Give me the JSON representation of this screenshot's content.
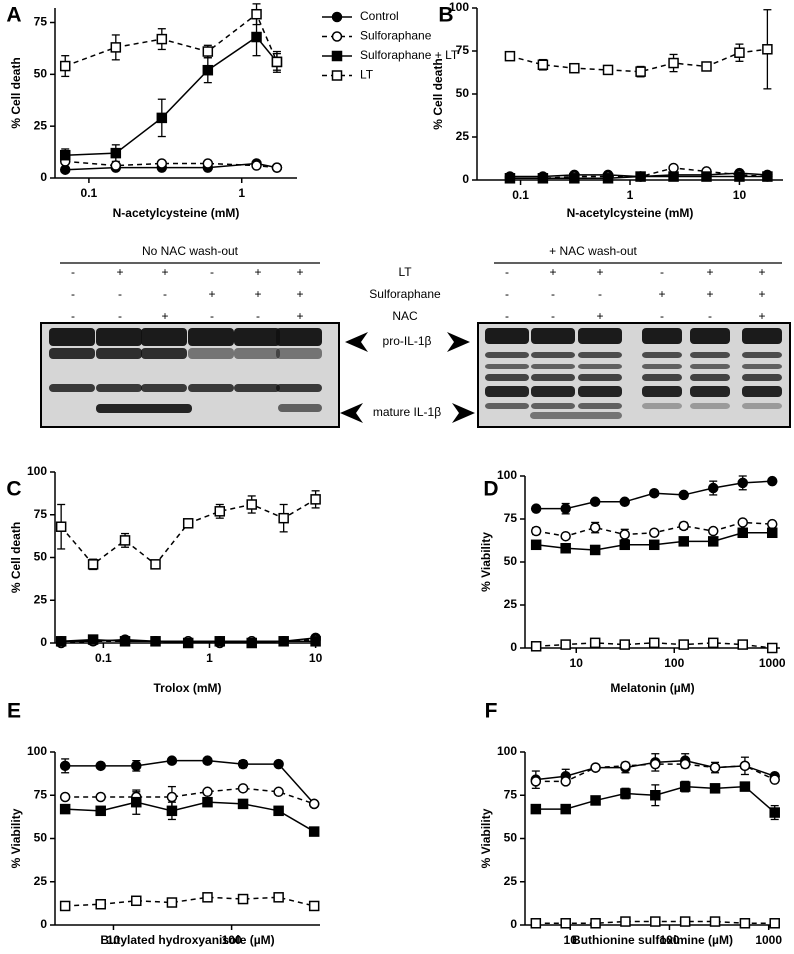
{
  "chart_data": [
    {
      "type": "line",
      "panel": "A",
      "xlabel": "N-acetylcysteine (mM)",
      "ylabel": "% Cell death",
      "xscale": "log",
      "color": "#000000",
      "legend": "right",
      "x": [
        0.07,
        0.15,
        0.3,
        0.6,
        1.25,
        1.7
      ],
      "xlim": [
        0.06,
        2.3
      ],
      "xticks": [
        0.1,
        1
      ],
      "ylim": [
        0,
        82
      ],
      "yticks": [
        0,
        25,
        50,
        75
      ],
      "series": [
        {
          "name": "Control",
          "marker": "circle",
          "filled": true,
          "dashed": false,
          "values": [
            4,
            5,
            5,
            5,
            7,
            5
          ]
        },
        {
          "name": "Sulforaphane",
          "marker": "circle",
          "filled": false,
          "dashed": true,
          "values": [
            8,
            6,
            7,
            7,
            6,
            5
          ]
        },
        {
          "name": "Sulforaphane + LT",
          "marker": "square",
          "filled": true,
          "dashed": false,
          "values": [
            11,
            12,
            29,
            52,
            68,
            56
          ],
          "errors": [
            3,
            4,
            9,
            6,
            9,
            5
          ]
        },
        {
          "name": "LT",
          "marker": "square",
          "filled": false,
          "dashed": true,
          "values": [
            54,
            63,
            67,
            61,
            79,
            56
          ],
          "errors": [
            5,
            6,
            5,
            3,
            5,
            4
          ]
        }
      ]
    },
    {
      "type": "line",
      "panel": "B",
      "xlabel": "N-acetylcysteine (mM)",
      "ylabel": "% Cell death",
      "xscale": "log",
      "color": "#000000",
      "x": [
        0.08,
        0.16,
        0.31,
        0.63,
        1.25,
        2.5,
        5,
        10,
        18
      ],
      "xlim": [
        0.04,
        25
      ],
      "xticks": [
        0.1,
        1,
        10
      ],
      "ylim": [
        0,
        100
      ],
      "yticks": [
        0,
        25,
        50,
        75,
        100
      ],
      "series": [
        {
          "marker": "circle",
          "filled": true,
          "dashed": false,
          "values": [
            2,
            2,
            3,
            3,
            2,
            3,
            3,
            4,
            3
          ]
        },
        {
          "marker": "circle",
          "filled": false,
          "dashed": true,
          "values": [
            1,
            1,
            2,
            2,
            2,
            7,
            5,
            3,
            2
          ]
        },
        {
          "marker": "square",
          "filled": true,
          "dashed": false,
          "values": [
            1,
            1,
            1,
            1,
            2,
            2,
            2,
            2,
            2
          ]
        },
        {
          "marker": "square",
          "filled": false,
          "dashed": true,
          "values": [
            72,
            67,
            65,
            64,
            63,
            68,
            66,
            74,
            76
          ],
          "errors": [
            2,
            3,
            2,
            2,
            3,
            5,
            2,
            5,
            23
          ]
        }
      ]
    },
    {
      "type": "line",
      "panel": "C",
      "xlabel": "Trolox (mM)",
      "ylabel": "% Cell death",
      "xscale": "log",
      "color": "#000000",
      "x": [
        0.04,
        0.08,
        0.16,
        0.31,
        0.63,
        1.25,
        2.5,
        5,
        10
      ],
      "xlim": [
        0.035,
        11
      ],
      "xticks": [
        0.1,
        1,
        10
      ],
      "ylim": [
        0,
        100
      ],
      "yticks": [
        0,
        25,
        50,
        75,
        100
      ],
      "series": [
        {
          "marker": "circle",
          "filled": true,
          "dashed": false,
          "values": [
            1,
            1,
            2,
            1,
            1,
            1,
            1,
            1,
            3
          ]
        },
        {
          "marker": "circle",
          "filled": false,
          "dashed": true,
          "values": [
            0,
            1,
            1,
            1,
            1,
            0,
            1,
            1,
            2
          ]
        },
        {
          "marker": "square",
          "filled": true,
          "dashed": false,
          "values": [
            1,
            2,
            1,
            1,
            0,
            1,
            0,
            1,
            1
          ]
        },
        {
          "marker": "square",
          "filled": false,
          "dashed": true,
          "values": [
            68,
            46,
            60,
            46,
            70,
            77,
            81,
            73,
            84
          ],
          "errors": [
            13,
            3,
            4,
            1,
            2,
            4,
            5,
            8,
            5
          ]
        }
      ]
    },
    {
      "type": "line",
      "panel": "D",
      "xlabel": "Melatonin (µM)",
      "ylabel": "% Viability",
      "xscale": "log",
      "color": "#000000",
      "x": [
        3.9,
        7.8,
        15.6,
        31.25,
        62.5,
        125,
        250,
        500,
        1000
      ],
      "xlim": [
        3,
        1200
      ],
      "xticks": [
        10,
        100,
        1000
      ],
      "ylim": [
        0,
        100
      ],
      "yticks": [
        0,
        25,
        50,
        75,
        100
      ],
      "series": [
        {
          "marker": "circle",
          "filled": true,
          "dashed": false,
          "values": [
            81,
            81,
            85,
            85,
            90,
            89,
            93,
            96,
            97
          ],
          "errors": [
            1,
            3,
            1,
            1,
            1,
            1,
            4,
            4,
            1
          ]
        },
        {
          "marker": "circle",
          "filled": false,
          "dashed": true,
          "values": [
            68,
            65,
            70,
            66,
            67,
            71,
            68,
            73,
            72
          ],
          "errors": [
            2,
            1,
            3,
            3,
            1,
            2,
            1,
            1,
            1
          ]
        },
        {
          "marker": "square",
          "filled": true,
          "dashed": false,
          "values": [
            60,
            58,
            57,
            60,
            60,
            62,
            62,
            67,
            67
          ]
        },
        {
          "marker": "square",
          "filled": false,
          "dashed": true,
          "values": [
            1,
            2,
            3,
            2,
            3,
            2,
            3,
            2,
            0
          ]
        }
      ]
    },
    {
      "type": "line",
      "panel": "E",
      "xlabel": "Butylated hydroxyanisole (µM)",
      "ylabel": "% Viability",
      "xscale": "log",
      "color": "#000000",
      "x": [
        3.9,
        7.8,
        15.6,
        31.25,
        62.5,
        125,
        250,
        500
      ],
      "xlim": [
        3.2,
        560
      ],
      "xticks": [
        10,
        100
      ],
      "ylim": [
        0,
        100
      ],
      "yticks": [
        0,
        25,
        50,
        75,
        100
      ],
      "series": [
        {
          "marker": "circle",
          "filled": true,
          "dashed": false,
          "values": [
            92,
            92,
            92,
            95,
            95,
            93,
            93,
            70
          ],
          "errors": [
            4,
            1,
            3,
            1,
            1,
            2,
            1,
            1
          ]
        },
        {
          "marker": "circle",
          "filled": false,
          "dashed": true,
          "values": [
            74,
            74,
            74,
            74,
            77,
            79,
            77,
            70
          ],
          "errors": [
            1,
            1,
            3,
            6,
            1,
            1,
            1,
            1
          ]
        },
        {
          "marker": "square",
          "filled": true,
          "dashed": false,
          "values": [
            67,
            66,
            71,
            66,
            71,
            70,
            66,
            54
          ],
          "errors": [
            2,
            1,
            7,
            5,
            1,
            1,
            1,
            1
          ]
        },
        {
          "marker": "square",
          "filled": false,
          "dashed": true,
          "values": [
            11,
            12,
            14,
            13,
            16,
            15,
            16,
            11
          ]
        }
      ]
    },
    {
      "type": "line",
      "panel": "F",
      "xlabel": "Buthionine sulfoximine (µM)",
      "ylabel": "% Viability",
      "xscale": "log",
      "color": "#000000",
      "x": [
        4.5,
        9,
        18,
        36,
        72,
        144,
        288,
        576,
        1150
      ],
      "xlim": [
        3.5,
        1300
      ],
      "xticks": [
        10,
        100,
        1000
      ],
      "ylim": [
        0,
        100
      ],
      "yticks": [
        0,
        25,
        50,
        75,
        100
      ],
      "series": [
        {
          "marker": "circle",
          "filled": true,
          "dashed": false,
          "values": [
            84,
            86,
            91,
            91,
            94,
            95,
            91,
            92,
            86
          ],
          "errors": [
            5,
            4,
            1,
            3,
            5,
            4,
            3,
            5,
            1
          ]
        },
        {
          "marker": "circle",
          "filled": false,
          "dashed": true,
          "values": [
            83,
            83,
            91,
            92,
            93,
            93,
            91,
            92,
            84
          ]
        },
        {
          "marker": "square",
          "filled": true,
          "dashed": false,
          "values": [
            67,
            67,
            72,
            76,
            75,
            80,
            79,
            80,
            65
          ],
          "errors": [
            1,
            1,
            1,
            3,
            6,
            3,
            1,
            1,
            4
          ]
        },
        {
          "marker": "square",
          "filled": false,
          "dashed": true,
          "values": [
            1,
            1,
            1,
            2,
            2,
            2,
            2,
            1,
            1
          ]
        }
      ]
    }
  ],
  "blot": {
    "row_labels": [
      "LT",
      "Sulforaphane",
      "NAC"
    ],
    "band_labels": [
      "pro-IL-1β",
      "mature IL-1β"
    ],
    "panels": [
      {
        "title": "No NAC wash-out",
        "rows": [
          [
            "-",
            "+",
            "+",
            "-",
            "+",
            "+"
          ],
          [
            "-",
            "-",
            "-",
            "+",
            "+",
            "+"
          ],
          [
            "-",
            "-",
            "+",
            "-",
            "-",
            "+"
          ]
        ]
      },
      {
        "title": "+ NAC wash-out",
        "rows": [
          [
            "-",
            "+",
            "+",
            "-",
            "+",
            "+"
          ],
          [
            "-",
            "-",
            "-",
            "+",
            "+",
            "+"
          ],
          [
            "-",
            "-",
            "+",
            "-",
            "-",
            "+"
          ]
        ]
      }
    ]
  }
}
